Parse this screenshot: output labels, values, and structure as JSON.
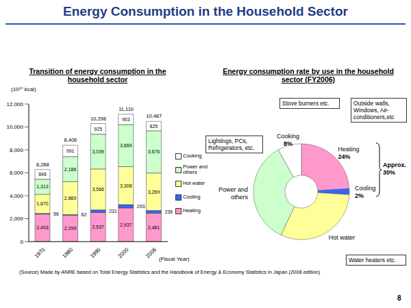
{
  "header": {
    "title": "Energy Consumption in the Household Sector"
  },
  "footer": {
    "source": "(Source) Made by ANRE based on Total Energy Statistics and the Handbook of Energy & Economy Statistics in Japan (2008 edition)",
    "page": "8"
  },
  "chart_data": [
    {
      "type": "bar",
      "stacked": true,
      "title": "Transition of energy consumption in the household sector",
      "y_label": "(10¹⁰ kcal)",
      "x_label": "(Fiscal Year)",
      "categories": [
        "1970",
        "1980",
        "1990",
        "2000",
        "2006"
      ],
      "series": [
        {
          "name": "Heating",
          "color": "#ff99cc",
          "values": [
            2403,
            2299,
            2537,
            2937,
            2481
          ],
          "value_labels": [
            "2,403",
            "2,299",
            "2,537",
            "2,937",
            "2,481"
          ]
        },
        {
          "name": "Cooling",
          "color": "#3366ff",
          "values": [
            56,
            62,
            231,
            293,
            236
          ],
          "value_labels": [
            "56",
            "62",
            "231",
            "293",
            "236"
          ]
        },
        {
          "name": "Hot water",
          "color": "#ffff99",
          "values": [
            1670,
            2869,
            3566,
            3308,
            3269
          ],
          "value_labels": [
            "1,670",
            "2,869",
            "3,566",
            "3,308",
            "3,269"
          ]
        },
        {
          "name": "Power and others",
          "color": "#ccffcc",
          "values": [
            1313,
            2186,
            3039,
            3669,
            3676
          ],
          "value_labels": [
            "1,313",
            "2,186",
            "3,039",
            "3,669",
            "3,676"
          ]
        },
        {
          "name": "Cooking",
          "color": "#ffffff",
          "values": [
            846,
            991,
            925,
            903,
            825
          ],
          "value_labels": [
            "846",
            "991",
            "925",
            "903",
            "825"
          ]
        }
      ],
      "totals": [
        6288,
        8406,
        10298,
        11110,
        10487
      ],
      "total_labels": [
        "6,288",
        "8,406",
        "10,298",
        "11,110",
        "10,487"
      ],
      "ylim": [
        0,
        12000
      ],
      "yticks": [
        0,
        {
          "value": 2000,
          "label": "2,000"
        },
        {
          "value": 4000,
          "label": "4,000"
        },
        {
          "value": 6000,
          "label": "6,000"
        },
        {
          "value": 8000,
          "label": "8,000"
        },
        {
          "value": 10000,
          "label": "10,000"
        },
        {
          "value": 12000,
          "label": "12,000"
        }
      ],
      "data_labels": true,
      "legend": "right",
      "grid": false
    },
    {
      "type": "pie",
      "title": "Energy consumption rate by use in the household sector (FY2006)",
      "categories": [
        "Heating",
        "Cooling",
        "Hot water",
        "Power and others",
        "Cooking"
      ],
      "values": [
        24,
        2,
        31,
        35,
        8
      ],
      "value_labels": [
        "24%",
        "2%",
        null,
        null,
        "8%"
      ],
      "colors": [
        "#ff99cc",
        "#3366ff",
        "#ffff99",
        "#ccffcc",
        "#ffffff"
      ],
      "data_labels": true,
      "annotations": [
        "Stove burners etc.",
        "Outside walls, Windows, Air-conditioners,etc",
        "Lightings, PCs, Refrigerators, etc.",
        "Water heaters etc.",
        "Approx. 30%"
      ]
    }
  ]
}
